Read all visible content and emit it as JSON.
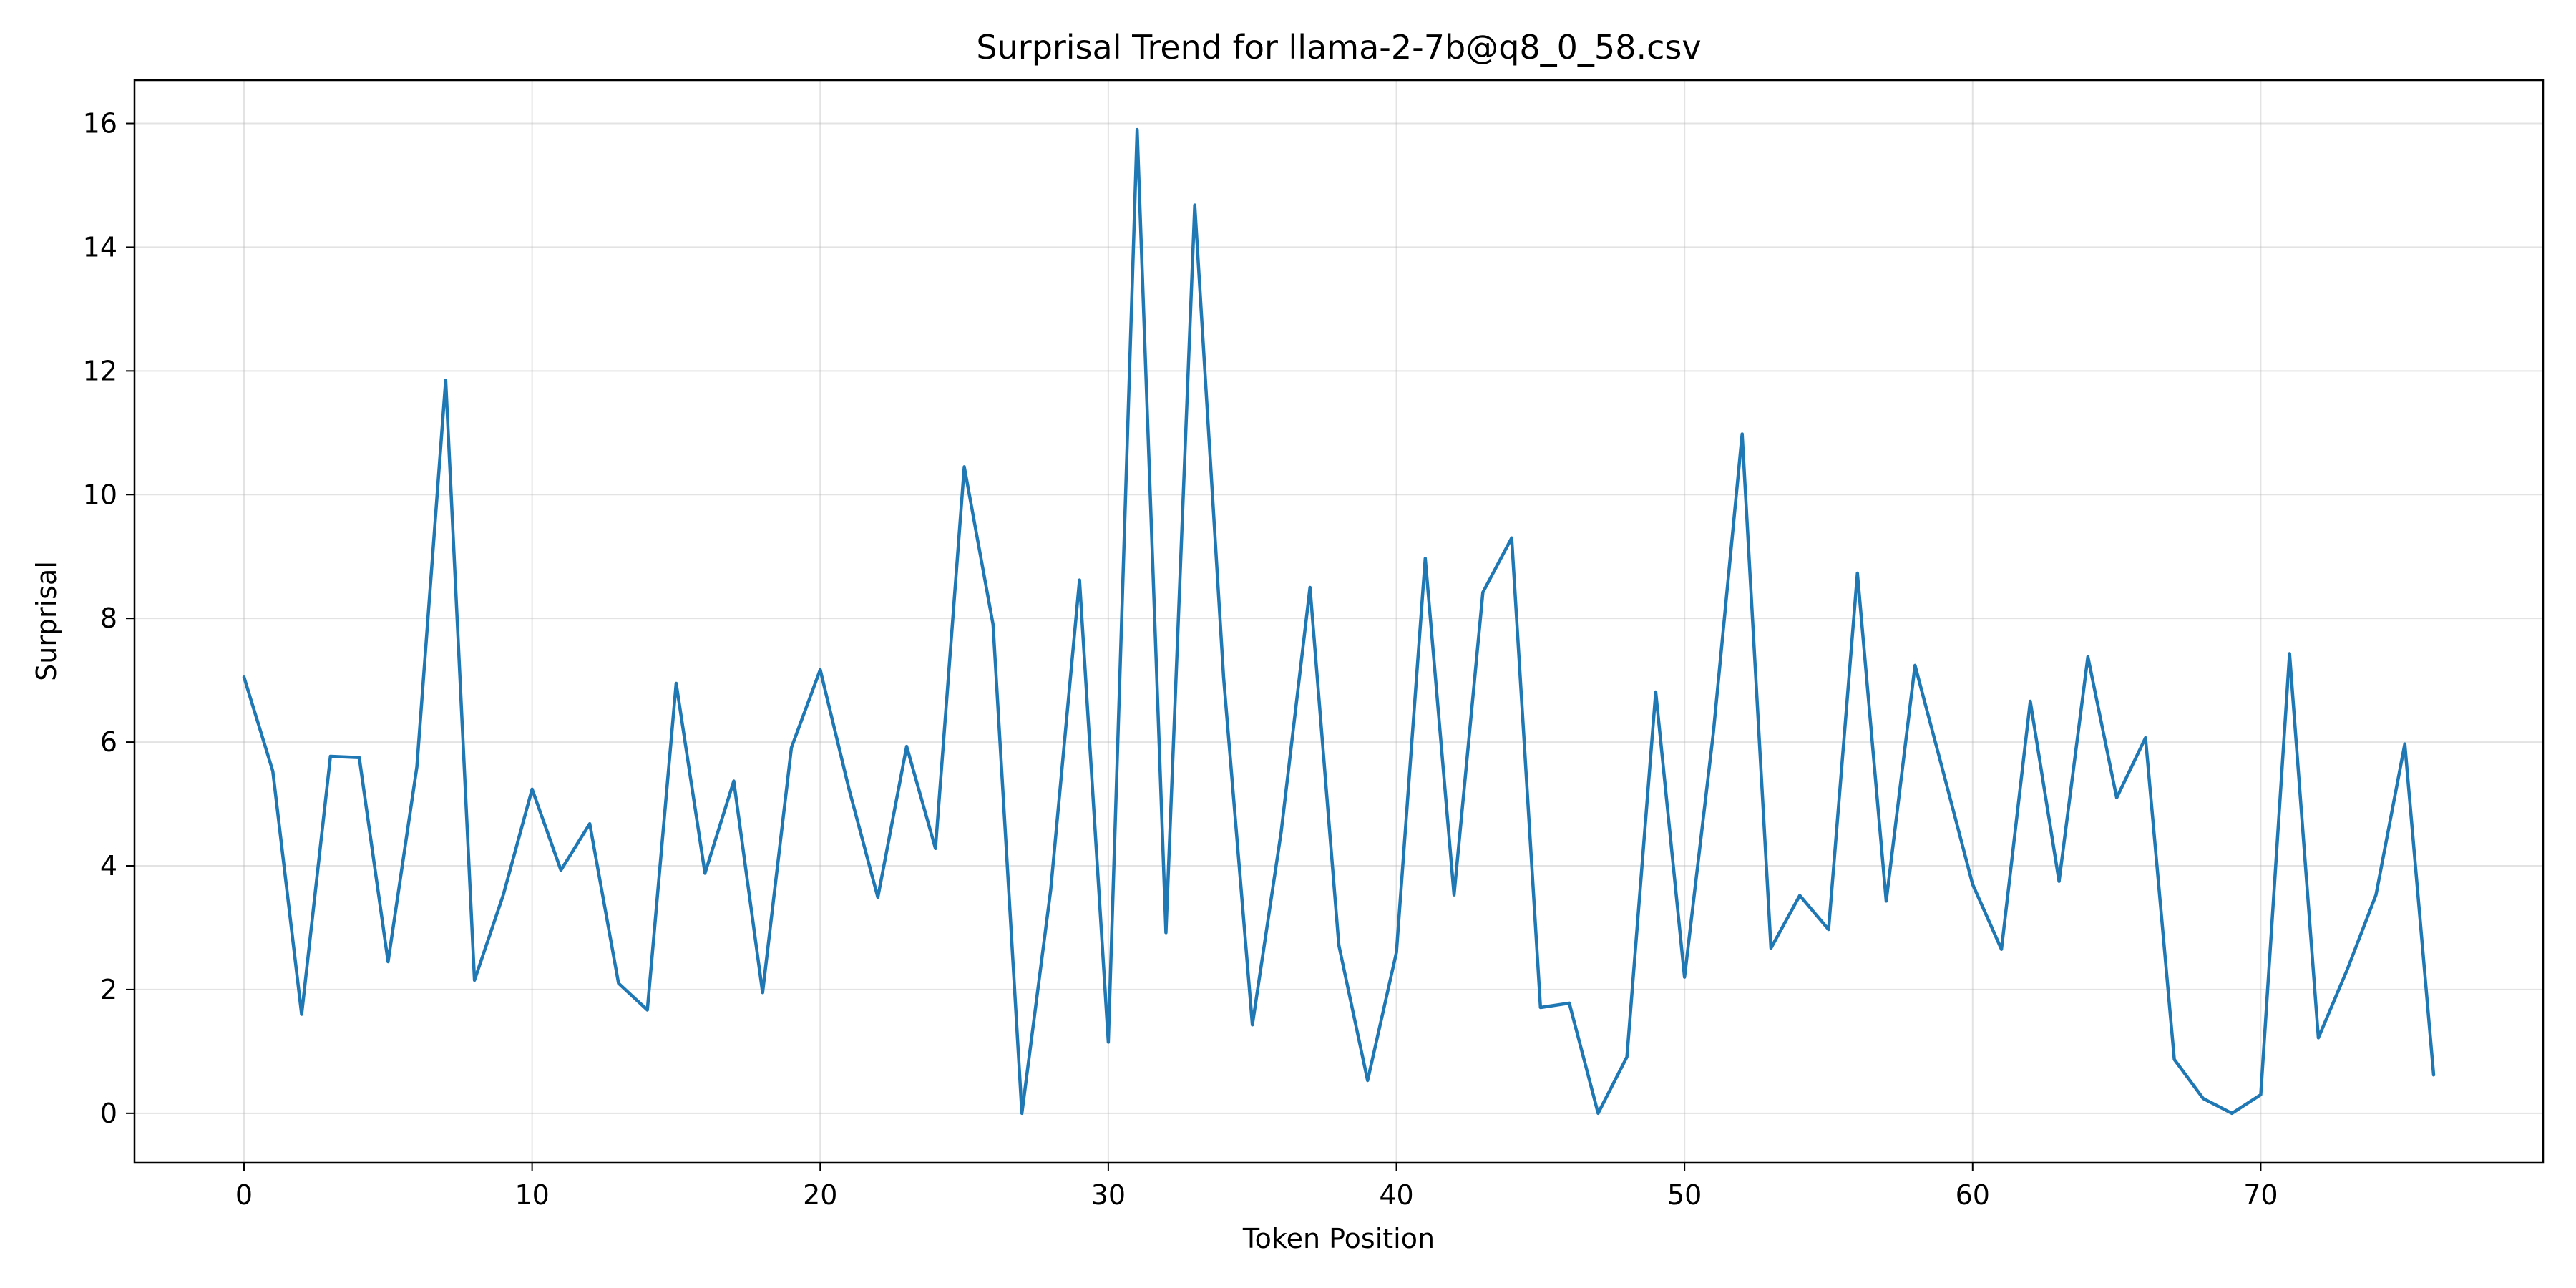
{
  "chart_data": {
    "type": "line",
    "title": "Surprisal Trend for llama-2-7b@q8_0_58.csv",
    "xlabel": "Token Position",
    "ylabel": "Surprisal",
    "xlim": [
      -3.8,
      79.8
    ],
    "ylim": [
      -0.8,
      16.7
    ],
    "xticks": [
      "0",
      "10",
      "20",
      "30",
      "40",
      "50",
      "60",
      "70"
    ],
    "yticks": [
      "0",
      "2",
      "4",
      "6",
      "8",
      "10",
      "12",
      "14",
      "16"
    ],
    "grid": true,
    "series": [
      {
        "name": "Surprisal",
        "color": "#1f77b4",
        "x": [
          0,
          1,
          2,
          3,
          4,
          5,
          6,
          7,
          8,
          9,
          10,
          11,
          12,
          13,
          14,
          15,
          16,
          17,
          18,
          19,
          20,
          21,
          22,
          23,
          24,
          25,
          26,
          27,
          28,
          29,
          30,
          31,
          32,
          33,
          34,
          35,
          36,
          37,
          38,
          39,
          40,
          41,
          42,
          43,
          44,
          45,
          46,
          47,
          48,
          49,
          50,
          51,
          52,
          53,
          54,
          55,
          56,
          57,
          58,
          59,
          60,
          61,
          62,
          63,
          64,
          65,
          66,
          67,
          68,
          69,
          70,
          71,
          72,
          73,
          74,
          75,
          76
        ],
        "values": [
          7.05,
          5.53,
          1.6,
          5.77,
          5.75,
          2.45,
          5.6,
          11.85,
          2.15,
          3.53,
          5.24,
          3.93,
          4.68,
          2.1,
          1.67,
          6.95,
          3.88,
          5.37,
          1.95,
          5.91,
          7.17,
          5.24,
          3.49,
          5.93,
          4.28,
          10.45,
          7.9,
          0.0,
          3.61,
          8.62,
          1.15,
          15.9,
          2.92,
          14.68,
          7.05,
          1.43,
          4.55,
          8.5,
          2.72,
          0.53,
          2.6,
          8.97,
          3.53,
          8.42,
          9.3,
          1.71,
          1.78,
          0.0,
          0.91,
          6.81,
          2.2,
          6.15,
          10.98,
          2.67,
          3.52,
          2.97,
          8.73,
          3.43,
          7.24,
          5.48,
          3.7,
          2.65,
          6.66,
          3.75,
          7.38,
          5.1,
          6.07,
          0.87,
          0.24,
          0.0,
          0.3,
          7.43,
          1.22,
          2.32,
          3.53,
          5.97,
          0.62
        ]
      }
    ]
  }
}
